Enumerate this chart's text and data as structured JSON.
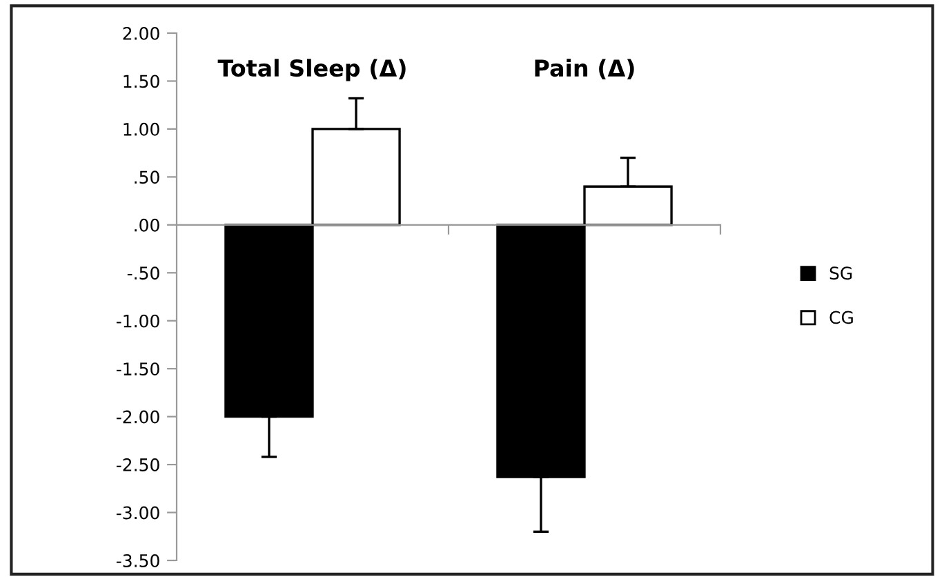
{
  "chart_data": {
    "type": "bar",
    "categories": [
      "Total Sleep (Δ)",
      "Pain (Δ)"
    ],
    "series": [
      {
        "name": "SG",
        "color": "#000000",
        "values": [
          -2.0,
          -2.63
        ],
        "errors": [
          [
            -2.42,
            -2.0
          ],
          [
            -3.2,
            -2.63
          ]
        ]
      },
      {
        "name": "CG",
        "color": "#ffffff",
        "values": [
          1.0,
          0.4
        ],
        "errors": [
          [
            1.0,
            1.32
          ],
          [
            0.4,
            0.7
          ]
        ]
      }
    ],
    "ylim": [
      -3.5,
      2.0
    ],
    "yticks": [
      {
        "value": 2.0,
        "label": "2.00"
      },
      {
        "value": 1.5,
        "label": "1.50"
      },
      {
        "value": 1.0,
        "label": "1.00"
      },
      {
        "value": 0.5,
        "label": ".50"
      },
      {
        "value": 0.0,
        "label": ".00"
      },
      {
        "value": -0.5,
        "label": "-.50"
      },
      {
        "value": -1.0,
        "label": "-1.00"
      },
      {
        "value": -1.5,
        "label": "-1.50"
      },
      {
        "value": -2.0,
        "label": "-2.00"
      },
      {
        "value": -2.5,
        "label": "-2.50"
      },
      {
        "value": -3.0,
        "label": "-3.00"
      },
      {
        "value": -3.5,
        "label": "-3.50"
      }
    ],
    "legend": "right"
  }
}
